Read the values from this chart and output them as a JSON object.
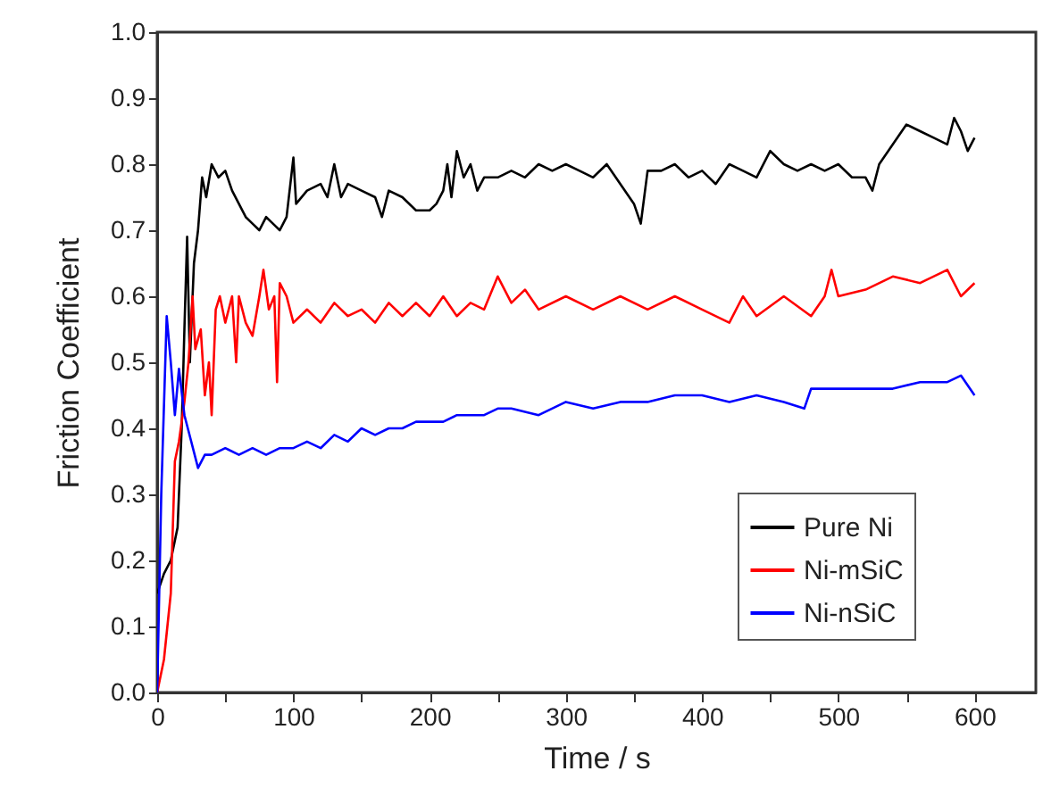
{
  "chart_data": {
    "type": "line",
    "xlabel": "Time / s",
    "ylabel": "Friction Coefficient",
    "xlim": [
      0,
      645
    ],
    "ylim": [
      0,
      1.0
    ],
    "xticks": [
      0,
      {
        "value": 50,
        "label": null
      },
      100,
      {
        "value": 150,
        "label": null
      },
      200,
      {
        "value": 250,
        "label": null
      },
      300,
      {
        "value": 350,
        "label": null
      },
      400,
      {
        "value": 450,
        "label": null
      },
      500,
      {
        "value": 550,
        "label": null
      },
      600
    ],
    "yticks": [
      {
        "value": 0,
        "label": "0.0"
      },
      0.1,
      0.2,
      0.3,
      0.4,
      0.5,
      0.6,
      0.7,
      0.8,
      0.9,
      {
        "value": 1,
        "label": "1.0"
      }
    ],
    "grid": false,
    "legend": "bottom right",
    "marker": "none",
    "line_style": "solid",
    "series": [
      {
        "name": "Pure Ni",
        "color": "#000000",
        "x": [
          0,
          5,
          10,
          15,
          18,
          20,
          22,
          24,
          27,
          30,
          33,
          36,
          40,
          45,
          50,
          55,
          60,
          65,
          70,
          75,
          80,
          85,
          90,
          95,
          100,
          102,
          110,
          120,
          125,
          130,
          135,
          140,
          150,
          160,
          165,
          170,
          180,
          190,
          200,
          205,
          210,
          213,
          216,
          220,
          225,
          230,
          235,
          240,
          250,
          260,
          270,
          280,
          290,
          300,
          310,
          320,
          330,
          340,
          350,
          355,
          360,
          370,
          380,
          390,
          400,
          410,
          420,
          430,
          440,
          450,
          460,
          470,
          480,
          490,
          500,
          510,
          520,
          525,
          530,
          540,
          550,
          560,
          570,
          580,
          585,
          590,
          595,
          600
        ],
        "values": [
          0.15,
          0.18,
          0.2,
          0.25,
          0.4,
          0.55,
          0.69,
          0.5,
          0.65,
          0.7,
          0.78,
          0.75,
          0.8,
          0.78,
          0.79,
          0.76,
          0.74,
          0.72,
          0.71,
          0.7,
          0.72,
          0.71,
          0.7,
          0.72,
          0.81,
          0.74,
          0.76,
          0.77,
          0.75,
          0.8,
          0.75,
          0.77,
          0.76,
          0.75,
          0.72,
          0.76,
          0.75,
          0.73,
          0.73,
          0.74,
          0.76,
          0.8,
          0.75,
          0.82,
          0.78,
          0.8,
          0.76,
          0.78,
          0.78,
          0.79,
          0.78,
          0.8,
          0.79,
          0.8,
          0.79,
          0.78,
          0.8,
          0.77,
          0.74,
          0.71,
          0.79,
          0.79,
          0.8,
          0.78,
          0.79,
          0.77,
          0.8,
          0.79,
          0.78,
          0.82,
          0.8,
          0.79,
          0.8,
          0.79,
          0.8,
          0.78,
          0.78,
          0.76,
          0.8,
          0.83,
          0.86,
          0.85,
          0.84,
          0.83,
          0.87,
          0.85,
          0.82,
          0.84
        ]
      },
      {
        "name": "Ni-mSiC",
        "color": "#ff0000",
        "x": [
          0,
          5,
          10,
          13,
          16,
          20,
          23,
          26,
          28,
          32,
          35,
          38,
          40,
          43,
          46,
          50,
          55,
          58,
          60,
          65,
          70,
          75,
          78,
          82,
          86,
          88,
          90,
          95,
          100,
          110,
          120,
          130,
          140,
          150,
          160,
          170,
          180,
          190,
          200,
          210,
          220,
          230,
          240,
          250,
          260,
          270,
          280,
          300,
          320,
          340,
          360,
          380,
          400,
          420,
          430,
          440,
          460,
          480,
          490,
          495,
          500,
          520,
          540,
          560,
          580,
          590,
          600
        ],
        "values": [
          0,
          0.05,
          0.15,
          0.35,
          0.38,
          0.44,
          0.5,
          0.6,
          0.52,
          0.55,
          0.45,
          0.5,
          0.42,
          0.58,
          0.6,
          0.56,
          0.6,
          0.5,
          0.6,
          0.56,
          0.54,
          0.6,
          0.64,
          0.58,
          0.6,
          0.47,
          0.62,
          0.6,
          0.56,
          0.58,
          0.56,
          0.59,
          0.57,
          0.58,
          0.56,
          0.59,
          0.57,
          0.59,
          0.57,
          0.6,
          0.57,
          0.59,
          0.58,
          0.63,
          0.59,
          0.61,
          0.58,
          0.6,
          0.58,
          0.6,
          0.58,
          0.6,
          0.58,
          0.56,
          0.6,
          0.57,
          0.6,
          0.57,
          0.6,
          0.64,
          0.6,
          0.61,
          0.63,
          0.62,
          0.64,
          0.6,
          0.62
        ]
      },
      {
        "name": "Ni-nSiC",
        "color": "#0000ff",
        "x": [
          0,
          3,
          7,
          10,
          13,
          16,
          20,
          25,
          30,
          35,
          40,
          50,
          60,
          70,
          80,
          90,
          100,
          110,
          120,
          130,
          140,
          150,
          160,
          170,
          180,
          190,
          200,
          210,
          220,
          230,
          240,
          250,
          260,
          280,
          300,
          320,
          340,
          360,
          380,
          400,
          420,
          440,
          460,
          475,
          480,
          500,
          520,
          540,
          560,
          580,
          590,
          600
        ],
        "values": [
          0,
          0.3,
          0.57,
          0.5,
          0.42,
          0.49,
          0.42,
          0.38,
          0.34,
          0.36,
          0.36,
          0.37,
          0.36,
          0.37,
          0.36,
          0.37,
          0.37,
          0.38,
          0.37,
          0.39,
          0.38,
          0.4,
          0.39,
          0.4,
          0.4,
          0.41,
          0.41,
          0.41,
          0.42,
          0.42,
          0.42,
          0.43,
          0.43,
          0.42,
          0.44,
          0.43,
          0.44,
          0.44,
          0.45,
          0.45,
          0.44,
          0.45,
          0.44,
          0.43,
          0.46,
          0.46,
          0.46,
          0.46,
          0.47,
          0.47,
          0.48,
          0.45
        ]
      }
    ]
  }
}
